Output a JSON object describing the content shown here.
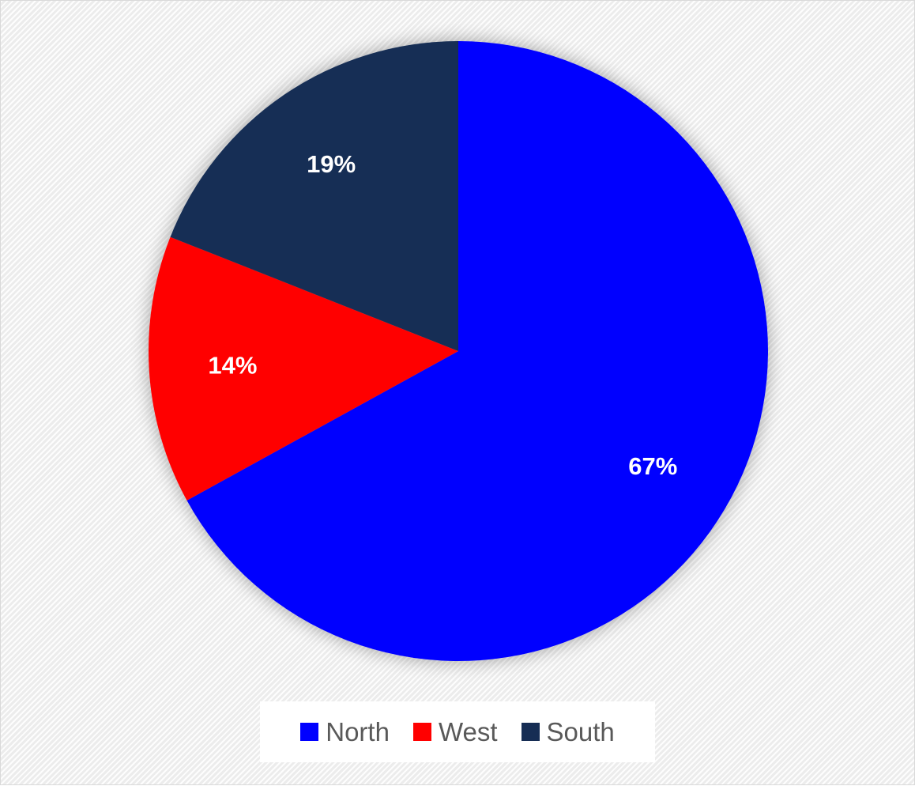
{
  "chart_data": {
    "type": "pie",
    "title": "",
    "start_angle_deg": 0,
    "direction": "clockwise",
    "slices": [
      {
        "name": "North",
        "value": 67,
        "label": "67%",
        "color": "#0000FF"
      },
      {
        "name": "West",
        "value": 14,
        "label": "14%",
        "color": "#FF0000"
      },
      {
        "name": "South",
        "value": 19,
        "label": "19%",
        "color": "#162D54"
      }
    ],
    "legend_position": "bottom"
  }
}
